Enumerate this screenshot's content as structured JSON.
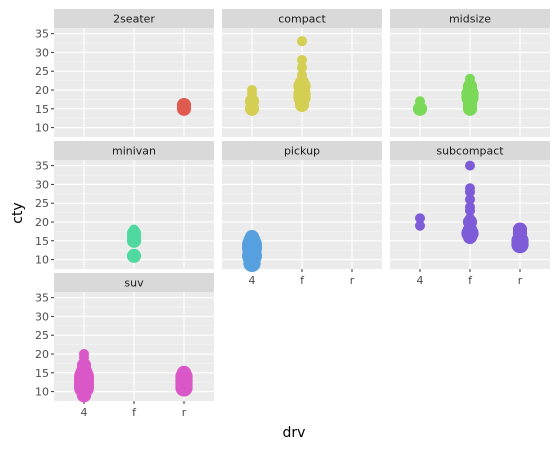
{
  "chart_data": {
    "type": "scatter",
    "xlabel": "drv",
    "ylabel": "cty",
    "x_categories": [
      "4",
      "f",
      "r"
    ],
    "y_ticks": [
      10,
      15,
      20,
      25,
      30,
      35
    ],
    "ylim": [
      7.5,
      36.5
    ],
    "grid": true,
    "legend": "none",
    "facets": [
      {
        "label": "2seater",
        "color": "#e05a50",
        "points": [
          {
            "x": "r",
            "y": 15,
            "n": 2
          },
          {
            "x": "r",
            "y": 16,
            "n": 2
          }
        ]
      },
      {
        "label": "compact",
        "color": "#d4cf52",
        "points": [
          {
            "x": "4",
            "y": 15,
            "n": 2
          },
          {
            "x": "4",
            "y": 16,
            "n": 1
          },
          {
            "x": "4",
            "y": 17,
            "n": 2
          },
          {
            "x": "4",
            "y": 18,
            "n": 1
          },
          {
            "x": "4",
            "y": 19,
            "n": 1
          },
          {
            "x": "4",
            "y": 20,
            "n": 1
          },
          {
            "x": "f",
            "y": 16,
            "n": 2
          },
          {
            "x": "f",
            "y": 17,
            "n": 2
          },
          {
            "x": "f",
            "y": 18,
            "n": 3
          },
          {
            "x": "f",
            "y": 19,
            "n": 3
          },
          {
            "x": "f",
            "y": 20,
            "n": 2
          },
          {
            "x": "f",
            "y": 21,
            "n": 3
          },
          {
            "x": "f",
            "y": 22,
            "n": 2
          },
          {
            "x": "f",
            "y": 24,
            "n": 1
          },
          {
            "x": "f",
            "y": 26,
            "n": 1
          },
          {
            "x": "f",
            "y": 28,
            "n": 1
          },
          {
            "x": "f",
            "y": 33,
            "n": 1
          }
        ]
      },
      {
        "label": "midsize",
        "color": "#7ad957",
        "points": [
          {
            "x": "4",
            "y": 15,
            "n": 2
          },
          {
            "x": "4",
            "y": 16,
            "n": 1
          },
          {
            "x": "4",
            "y": 17,
            "n": 1
          },
          {
            "x": "f",
            "y": 15,
            "n": 2
          },
          {
            "x": "f",
            "y": 16,
            "n": 2
          },
          {
            "x": "f",
            "y": 17,
            "n": 2
          },
          {
            "x": "f",
            "y": 18,
            "n": 3
          },
          {
            "x": "f",
            "y": 19,
            "n": 3
          },
          {
            "x": "f",
            "y": 20,
            "n": 2
          },
          {
            "x": "f",
            "y": 21,
            "n": 2
          },
          {
            "x": "f",
            "y": 22,
            "n": 1
          },
          {
            "x": "f",
            "y": 23,
            "n": 1
          }
        ]
      },
      {
        "label": "minivan",
        "color": "#4fd9a0",
        "points": [
          {
            "x": "f",
            "y": 11,
            "n": 2
          },
          {
            "x": "f",
            "y": 15,
            "n": 2
          },
          {
            "x": "f",
            "y": 16,
            "n": 2
          },
          {
            "x": "f",
            "y": 17,
            "n": 2
          },
          {
            "x": "f",
            "y": 18,
            "n": 1
          }
        ]
      },
      {
        "label": "pickup",
        "color": "#56a0e0",
        "points": [
          {
            "x": "4",
            "y": 9,
            "n": 3
          },
          {
            "x": "4",
            "y": 10,
            "n": 2
          },
          {
            "x": "4",
            "y": 11,
            "n": 4
          },
          {
            "x": "4",
            "y": 12,
            "n": 3
          },
          {
            "x": "4",
            "y": 13,
            "n": 4
          },
          {
            "x": "4",
            "y": 14,
            "n": 4
          },
          {
            "x": "4",
            "y": 15,
            "n": 3
          },
          {
            "x": "4",
            "y": 16,
            "n": 2
          }
        ]
      },
      {
        "label": "subcompact",
        "color": "#7e5cd8",
        "points": [
          {
            "x": "4",
            "y": 19,
            "n": 1
          },
          {
            "x": "4",
            "y": 21,
            "n": 1
          },
          {
            "x": "f",
            "y": 16,
            "n": 2
          },
          {
            "x": "f",
            "y": 17,
            "n": 3
          },
          {
            "x": "f",
            "y": 18,
            "n": 2
          },
          {
            "x": "f",
            "y": 19,
            "n": 1
          },
          {
            "x": "f",
            "y": 20,
            "n": 2
          },
          {
            "x": "f",
            "y": 21,
            "n": 1
          },
          {
            "x": "f",
            "y": 23,
            "n": 1
          },
          {
            "x": "f",
            "y": 24,
            "n": 1
          },
          {
            "x": "f",
            "y": 26,
            "n": 1
          },
          {
            "x": "f",
            "y": 28,
            "n": 1
          },
          {
            "x": "f",
            "y": 29,
            "n": 1
          },
          {
            "x": "f",
            "y": 35,
            "n": 1
          },
          {
            "x": "r",
            "y": 14,
            "n": 3
          },
          {
            "x": "r",
            "y": 15,
            "n": 3
          },
          {
            "x": "r",
            "y": 16,
            "n": 2
          },
          {
            "x": "r",
            "y": 17,
            "n": 2
          },
          {
            "x": "r",
            "y": 18,
            "n": 2
          }
        ]
      },
      {
        "label": "suv",
        "color": "#d957c6",
        "points": [
          {
            "x": "4",
            "y": 9,
            "n": 2
          },
          {
            "x": "4",
            "y": 10,
            "n": 2
          },
          {
            "x": "4",
            "y": 11,
            "n": 4
          },
          {
            "x": "4",
            "y": 12,
            "n": 4
          },
          {
            "x": "4",
            "y": 13,
            "n": 4
          },
          {
            "x": "4",
            "y": 14,
            "n": 4
          },
          {
            "x": "4",
            "y": 15,
            "n": 3
          },
          {
            "x": "4",
            "y": 16,
            "n": 2
          },
          {
            "x": "4",
            "y": 17,
            "n": 2
          },
          {
            "x": "4",
            "y": 18,
            "n": 1
          },
          {
            "x": "4",
            "y": 19,
            "n": 1
          },
          {
            "x": "4",
            "y": 20,
            "n": 1
          },
          {
            "x": "r",
            "y": 11,
            "n": 3
          },
          {
            "x": "r",
            "y": 12,
            "n": 3
          },
          {
            "x": "r",
            "y": 13,
            "n": 3
          },
          {
            "x": "r",
            "y": 14,
            "n": 3
          },
          {
            "x": "r",
            "y": 15,
            "n": 2
          }
        ]
      }
    ]
  }
}
